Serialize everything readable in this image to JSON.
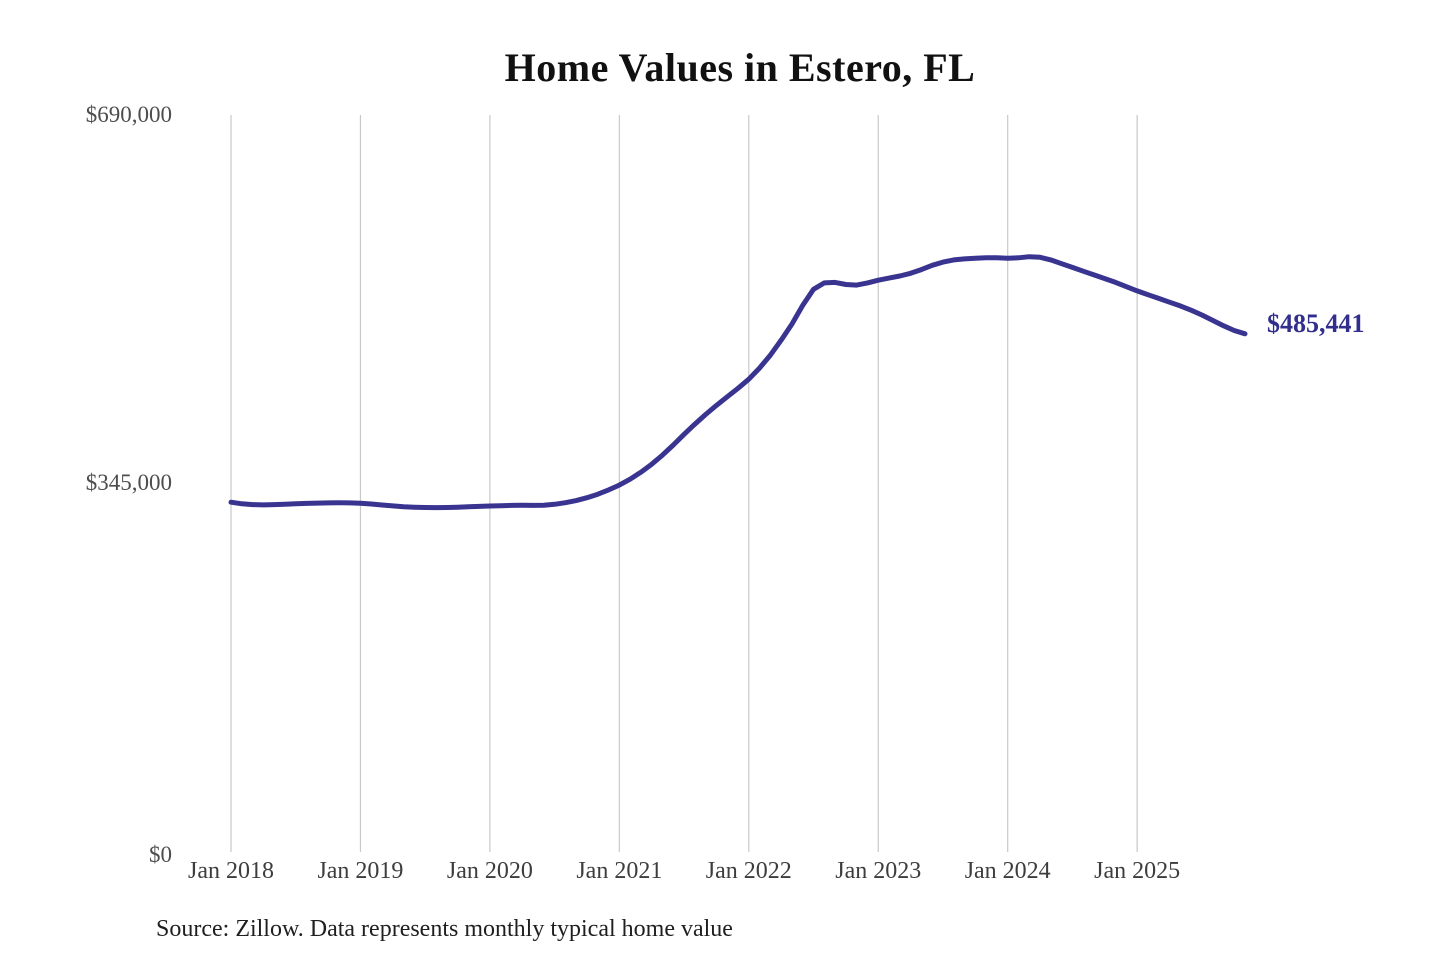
{
  "page": {
    "background": "#ffffff"
  },
  "source_note": "Source: Zillow. Data represents monthly typical home value",
  "chart_data": {
    "type": "line",
    "title": "Home Values in Estero, FL",
    "xlabel": "",
    "ylabel": "",
    "x_tick_labels": [
      "Jan 2018",
      "Jan 2019",
      "Jan 2020",
      "Jan 2021",
      "Jan 2022",
      "Jan 2023",
      "Jan 2024",
      "Jan 2025"
    ],
    "y_tick_labels": [
      "$0",
      "$345,000",
      "$690,000"
    ],
    "ylim": [
      0,
      690000
    ],
    "x_range": {
      "start": "Jan 2018",
      "end": "Nov 2025",
      "frequency": "monthly"
    },
    "grid": "vertical-year-lines-only",
    "legend": "none",
    "end_label": "$485,441",
    "series": [
      {
        "name": "Monthly typical home value",
        "values": [
          328000,
          326500,
          325700,
          325500,
          325700,
          326100,
          326500,
          326900,
          327100,
          327300,
          327400,
          327300,
          327000,
          326300,
          325400,
          324500,
          323800,
          323300,
          323000,
          322900,
          323000,
          323300,
          323700,
          324100,
          324400,
          324700,
          325000,
          325100,
          325000,
          325200,
          326000,
          327500,
          329500,
          332200,
          335500,
          339500,
          344000,
          349500,
          356000,
          363500,
          372000,
          381500,
          391500,
          401000,
          410000,
          418500,
          426500,
          434500,
          443000,
          453500,
          465500,
          479500,
          494500,
          512000,
          527000,
          533000,
          533500,
          531500,
          531000,
          533000,
          535500,
          537500,
          539500,
          542000,
          545500,
          549500,
          552500,
          554500,
          555500,
          556000,
          556500,
          556500,
          556000,
          556500,
          557500,
          557000,
          554500,
          551000,
          547500,
          544000,
          540500,
          537000,
          533500,
          529500,
          525500,
          522000,
          518500,
          515000,
          511500,
          507500,
          503000,
          498000,
          493000,
          488500,
          485441
        ]
      }
    ],
    "colors": {
      "line": "#3a3491",
      "end_label": "#312e8c",
      "gridline": "#c9c9c9",
      "y_tick_text": "#4d4d4d",
      "x_tick_text": "#3d3d3d",
      "title_text": "#111111",
      "source_text": "#1f1f1f"
    }
  }
}
